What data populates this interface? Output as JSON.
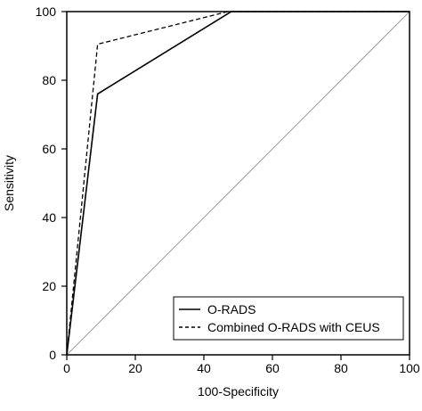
{
  "chart_data": {
    "type": "line",
    "title": "",
    "xlabel": "100-Specificity",
    "ylabel": "Sensitivity",
    "xlim": [
      0,
      100
    ],
    "ylim": [
      0,
      100
    ],
    "xticks": [
      0,
      20,
      40,
      60,
      80,
      100
    ],
    "yticks": [
      0,
      20,
      40,
      60,
      80,
      100
    ],
    "xtick_labels": [
      "0",
      "20",
      "40",
      "60",
      "80",
      "100"
    ],
    "ytick_labels": [
      "0",
      "20",
      "40",
      "60",
      "80",
      "100"
    ],
    "grid": false,
    "legend_position": "bottom-right",
    "reference_line": {
      "x": [
        0,
        100
      ],
      "y": [
        0,
        100
      ],
      "color": "#9a9a9a"
    },
    "series": [
      {
        "name": "O-RADS",
        "style": "solid",
        "color": "#000000",
        "x": [
          0,
          9,
          48,
          100
        ],
        "y": [
          0,
          76,
          100,
          100
        ]
      },
      {
        "name": "Combined O-RADS with CEUS",
        "style": "dashed",
        "color": "#000000",
        "x": [
          0,
          9,
          47,
          100
        ],
        "y": [
          0,
          90.5,
          100,
          100
        ]
      }
    ]
  }
}
